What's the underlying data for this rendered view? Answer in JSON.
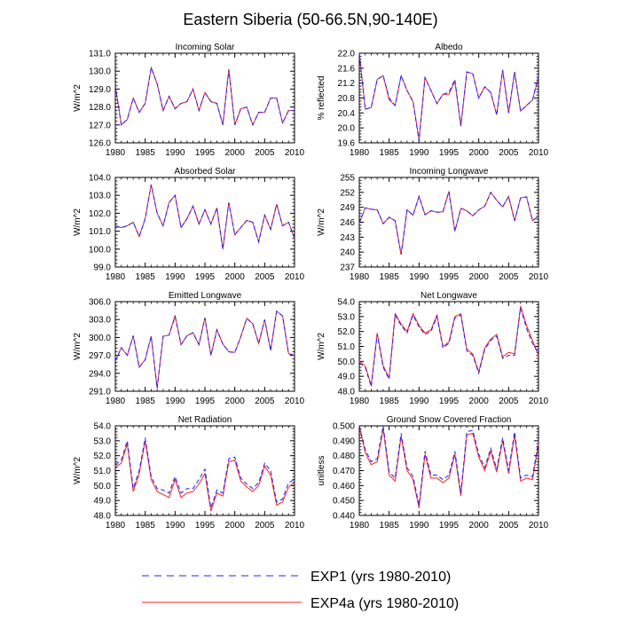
{
  "suptitle": "Eastern Siberia (50-66.5N,90-140E)",
  "legend": [
    {
      "name": "EXP1 (yrs 1980-2010)",
      "color": "#2020ff",
      "dashed": true
    },
    {
      "name": "EXP4a (yrs 1980-2010)",
      "color": "#ff2020",
      "dashed": false
    }
  ],
  "chart_data": [
    {
      "type": "line",
      "title": "Incoming Solar",
      "ylabel": "W/m^2",
      "ylim": [
        126,
        131
      ],
      "yticks": [
        "126.0",
        "127.0",
        "128.0",
        "129.0",
        "130.0",
        "131.0"
      ],
      "xlim": [
        1980,
        2010
      ],
      "xticks": [
        "1980",
        "1985",
        "1990",
        "1995",
        "2000",
        "2005",
        "2010"
      ],
      "x": [
        1980,
        1981,
        1982,
        1983,
        1984,
        1985,
        1986,
        1987,
        1988,
        1989,
        1990,
        1991,
        1992,
        1993,
        1994,
        1995,
        1996,
        1997,
        1998,
        1999,
        2000,
        2001,
        2002,
        2003,
        2004,
        2005,
        2006,
        2007,
        2008,
        2009,
        2010
      ],
      "series": [
        {
          "name": "EXP1",
          "values": [
            129.2,
            127.0,
            127.3,
            128.5,
            127.7,
            128.2,
            130.2,
            129.3,
            127.8,
            128.6,
            127.9,
            128.2,
            128.3,
            129.0,
            127.8,
            128.8,
            128.3,
            128.2,
            127.0,
            130.1,
            127.0,
            127.9,
            128.0,
            127.0,
            127.7,
            127.7,
            128.5,
            128.5,
            127.1,
            127.8,
            127.8
          ]
        },
        {
          "name": "EXP4a",
          "values": [
            129.2,
            127.0,
            127.3,
            128.5,
            127.7,
            128.2,
            130.2,
            129.3,
            127.8,
            128.6,
            127.9,
            128.2,
            128.3,
            129.0,
            127.8,
            128.8,
            128.3,
            128.2,
            127.0,
            130.1,
            127.0,
            127.9,
            128.0,
            127.0,
            127.7,
            127.7,
            128.5,
            128.5,
            127.1,
            127.8,
            127.8
          ]
        }
      ]
    },
    {
      "type": "line",
      "title": "Albedo",
      "ylabel": "% reflected",
      "ylim": [
        19.6,
        22.0
      ],
      "yticks": [
        "19.6",
        "20.0",
        "20.4",
        "20.8",
        "21.2",
        "21.6",
        "22.0"
      ],
      "xlim": [
        1980,
        2010
      ],
      "xticks": [
        "1980",
        "1985",
        "1990",
        "1995",
        "2000",
        "2005",
        "2010"
      ],
      "x": [
        1980,
        1981,
        1982,
        1983,
        1984,
        1985,
        1986,
        1987,
        1988,
        1989,
        1990,
        1991,
        1992,
        1993,
        1994,
        1995,
        1996,
        1997,
        1998,
        1999,
        2000,
        2001,
        2002,
        2003,
        2004,
        2005,
        2006,
        2007,
        2008,
        2009,
        2010
      ],
      "series": [
        {
          "name": "EXP1",
          "values": [
            22.0,
            20.5,
            20.55,
            21.3,
            21.4,
            20.8,
            20.6,
            21.4,
            21.0,
            20.7,
            19.65,
            21.35,
            21.0,
            20.65,
            20.9,
            20.95,
            21.3,
            20.05,
            21.5,
            21.45,
            20.8,
            21.1,
            20.95,
            20.35,
            21.55,
            20.4,
            21.5,
            20.45,
            20.6,
            20.75,
            21.4
          ]
        },
        {
          "name": "EXP4a",
          "values": [
            22.0,
            20.5,
            20.55,
            21.3,
            21.4,
            20.75,
            20.6,
            21.4,
            21.0,
            20.7,
            19.7,
            21.35,
            21.0,
            20.65,
            20.9,
            20.9,
            21.25,
            20.05,
            21.5,
            21.45,
            20.8,
            21.1,
            20.95,
            20.35,
            21.55,
            20.4,
            21.5,
            20.45,
            20.6,
            20.75,
            21.35
          ]
        }
      ]
    },
    {
      "type": "line",
      "title": "Absorbed Solar",
      "ylabel": "W/m^2",
      "ylim": [
        99,
        104
      ],
      "yticks": [
        "99.0",
        "100.0",
        "101.0",
        "102.0",
        "103.0",
        "104.0"
      ],
      "xlim": [
        1980,
        2010
      ],
      "xticks": [
        "1980",
        "1985",
        "1990",
        "1995",
        "2000",
        "2005",
        "2010"
      ],
      "x": [
        1980,
        1981,
        1982,
        1983,
        1984,
        1985,
        1986,
        1987,
        1988,
        1989,
        1990,
        1991,
        1992,
        1993,
        1994,
        1995,
        1996,
        1997,
        1998,
        1999,
        2000,
        2001,
        2002,
        2003,
        2004,
        2005,
        2006,
        2007,
        2008,
        2009,
        2010
      ],
      "series": [
        {
          "name": "EXP1",
          "values": [
            101.3,
            101.2,
            101.3,
            101.5,
            100.7,
            101.7,
            103.6,
            102.0,
            101.3,
            102.6,
            103.0,
            101.2,
            101.7,
            102.4,
            101.4,
            102.2,
            101.4,
            102.3,
            100.0,
            102.6,
            100.8,
            101.2,
            101.6,
            101.5,
            100.4,
            101.9,
            101.1,
            102.5,
            101.3,
            101.5,
            100.6
          ]
        },
        {
          "name": "EXP4a",
          "values": [
            101.3,
            101.2,
            101.3,
            101.5,
            100.7,
            101.7,
            103.6,
            102.0,
            101.3,
            102.6,
            103.0,
            101.2,
            101.7,
            102.4,
            101.4,
            102.2,
            101.4,
            102.3,
            100.0,
            102.6,
            100.8,
            101.2,
            101.6,
            101.5,
            100.4,
            101.9,
            101.1,
            102.5,
            101.3,
            101.5,
            100.6
          ]
        }
      ]
    },
    {
      "type": "line",
      "title": "Incoming Longwave",
      "ylabel": "W/m^2",
      "ylim": [
        237,
        255
      ],
      "yticks": [
        "237",
        "240",
        "243",
        "246",
        "249",
        "252",
        "255"
      ],
      "xlim": [
        1980,
        2010
      ],
      "xticks": [
        "1980",
        "1985",
        "1990",
        "1995",
        "2000",
        "2005",
        "2010"
      ],
      "x": [
        1980,
        1981,
        1982,
        1983,
        1984,
        1985,
        1986,
        1987,
        1988,
        1989,
        1990,
        1991,
        1992,
        1993,
        1994,
        1995,
        1996,
        1997,
        1998,
        1999,
        2000,
        2001,
        2002,
        2003,
        2004,
        2005,
        2006,
        2007,
        2008,
        2009,
        2010
      ],
      "series": [
        {
          "name": "EXP1",
          "values": [
            245.8,
            248.9,
            248.6,
            248.5,
            245.7,
            247.0,
            246.3,
            239.5,
            248.5,
            247.4,
            251.2,
            247.5,
            248.3,
            248.0,
            248.1,
            252.2,
            244.2,
            248.8,
            248.3,
            247.3,
            248.5,
            249.2,
            252.0,
            250.4,
            249.1,
            251.2,
            246.3,
            250.9,
            251.1,
            246.3,
            247.2
          ]
        },
        {
          "name": "EXP4a",
          "values": [
            245.8,
            248.9,
            248.6,
            248.5,
            245.7,
            247.0,
            246.3,
            239.5,
            248.5,
            247.4,
            251.2,
            247.5,
            248.3,
            248.0,
            248.1,
            252.2,
            244.2,
            248.8,
            248.3,
            247.3,
            248.5,
            249.2,
            252.0,
            250.4,
            249.1,
            251.2,
            246.3,
            250.9,
            251.1,
            246.3,
            247.2
          ]
        }
      ]
    },
    {
      "type": "line",
      "title": "Emitted Longwave",
      "ylabel": "W/m^2",
      "ylim": [
        291,
        306
      ],
      "yticks": [
        "291.0",
        "294.0",
        "297.0",
        "300.0",
        "303.0",
        "306.0"
      ],
      "xlim": [
        1980,
        2010
      ],
      "xticks": [
        "1980",
        "1985",
        "1990",
        "1995",
        "2000",
        "2005",
        "2010"
      ],
      "x": [
        1980,
        1981,
        1982,
        1983,
        1984,
        1985,
        1986,
        1987,
        1988,
        1989,
        1990,
        1991,
        1992,
        1993,
        1994,
        1995,
        1996,
        1997,
        1998,
        1999,
        2000,
        2001,
        2002,
        2003,
        2004,
        2005,
        2006,
        2007,
        2008,
        2009,
        2010
      ],
      "series": [
        {
          "name": "EXP1",
          "values": [
            296.0,
            298.3,
            297.0,
            300.3,
            295.0,
            296.3,
            300.2,
            291.5,
            300.2,
            300.4,
            303.5,
            298.8,
            300.3,
            300.8,
            298.8,
            303.3,
            297.0,
            301.3,
            298.9,
            297.6,
            297.5,
            300.1,
            303.2,
            302.3,
            299.0,
            303.0,
            297.8,
            304.4,
            303.6,
            297.3,
            297.0
          ]
        },
        {
          "name": "EXP4a",
          "values": [
            296.0,
            298.3,
            297.0,
            300.3,
            295.0,
            296.3,
            300.2,
            291.5,
            300.2,
            300.4,
            303.7,
            298.8,
            300.3,
            300.8,
            298.8,
            303.3,
            297.0,
            301.3,
            298.9,
            297.6,
            297.5,
            300.1,
            303.2,
            302.3,
            299.0,
            303.0,
            297.8,
            304.4,
            303.6,
            297.3,
            297.0
          ]
        }
      ]
    },
    {
      "type": "line",
      "title": "Net Longwave",
      "ylabel": "W/m^2",
      "ylim": [
        48,
        54
      ],
      "yticks": [
        "48.0",
        "49.0",
        "50.0",
        "51.0",
        "52.0",
        "53.0",
        "54.0"
      ],
      "xlim": [
        1980,
        2010
      ],
      "xticks": [
        "1980",
        "1985",
        "1990",
        "1995",
        "2000",
        "2005",
        "2010"
      ],
      "x": [
        1980,
        1981,
        1982,
        1983,
        1984,
        1985,
        1986,
        1987,
        1988,
        1989,
        1990,
        1991,
        1992,
        1993,
        1994,
        1995,
        1996,
        1997,
        1998,
        1999,
        2000,
        2001,
        2002,
        2003,
        2004,
        2005,
        2006,
        2007,
        2008,
        2009,
        2010
      ],
      "series": [
        {
          "name": "EXP1",
          "values": [
            49.9,
            49.6,
            48.3,
            51.8,
            49.6,
            48.8,
            53.1,
            52.4,
            51.9,
            53.1,
            52.3,
            51.8,
            52.0,
            53.0,
            50.9,
            51.2,
            52.9,
            53.1,
            50.7,
            50.4,
            49.2,
            50.8,
            51.4,
            51.7,
            50.2,
            50.4,
            50.4,
            53.6,
            52.2,
            51.2,
            50.5
          ]
        },
        {
          "name": "EXP4a",
          "values": [
            50.0,
            49.7,
            48.4,
            51.9,
            49.7,
            48.9,
            53.2,
            52.5,
            52.0,
            53.2,
            52.4,
            51.9,
            52.1,
            53.1,
            51.0,
            51.3,
            53.0,
            53.2,
            50.8,
            50.5,
            49.3,
            50.9,
            51.5,
            51.8,
            50.3,
            50.6,
            50.5,
            53.7,
            52.4,
            51.4,
            50.4
          ]
        }
      ]
    },
    {
      "type": "line",
      "title": "Net Radiation",
      "ylabel": "W/m^2",
      "ylim": [
        48,
        54
      ],
      "yticks": [
        "48.0",
        "49.0",
        "50.0",
        "51.0",
        "52.0",
        "53.0",
        "54.0"
      ],
      "xlim": [
        1980,
        2010
      ],
      "xticks": [
        "1980",
        "1985",
        "1990",
        "1995",
        "2000",
        "2005",
        "2010"
      ],
      "x": [
        1980,
        1981,
        1982,
        1983,
        1984,
        1985,
        1986,
        1987,
        1988,
        1989,
        1990,
        1991,
        1992,
        1993,
        1994,
        1995,
        1996,
        1997,
        1998,
        1999,
        2000,
        2001,
        2002,
        2003,
        2004,
        2005,
        2006,
        2007,
        2008,
        2009,
        2010
      ],
      "series": [
        {
          "name": "EXP1",
          "values": [
            51.4,
            51.7,
            53.0,
            49.8,
            51.0,
            53.2,
            50.6,
            49.8,
            49.7,
            49.5,
            50.6,
            49.5,
            49.8,
            49.8,
            50.4,
            51.1,
            48.5,
            49.7,
            49.5,
            51.8,
            51.9,
            50.5,
            50.1,
            49.8,
            50.2,
            51.5,
            51.0,
            48.9,
            49.1,
            50.2,
            50.4
          ]
        },
        {
          "name": "EXP4a",
          "values": [
            51.2,
            51.5,
            52.8,
            49.6,
            50.8,
            53.0,
            50.4,
            49.6,
            49.4,
            49.2,
            50.4,
            49.2,
            49.5,
            49.6,
            50.1,
            50.8,
            48.3,
            49.5,
            49.3,
            51.6,
            51.7,
            50.3,
            49.9,
            49.6,
            50.0,
            51.3,
            50.7,
            48.7,
            48.9,
            49.9,
            50.2
          ]
        }
      ]
    },
    {
      "type": "line",
      "title": "Ground Snow Covered Fraction",
      "ylabel": "unitless",
      "ylim": [
        0.44,
        0.5
      ],
      "yticks": [
        "0.440",
        "0.450",
        "0.460",
        "0.470",
        "0.480",
        "0.490",
        "0.500"
      ],
      "xlim": [
        1980,
        2010
      ],
      "xticks": [
        "1980",
        "1985",
        "1990",
        "1995",
        "2000",
        "2005",
        "2010"
      ],
      "x": [
        1980,
        1981,
        1982,
        1983,
        1984,
        1985,
        1986,
        1987,
        1988,
        1989,
        1990,
        1991,
        1992,
        1993,
        1994,
        1995,
        1996,
        1997,
        1998,
        1999,
        2000,
        2001,
        2002,
        2003,
        2004,
        2005,
        2006,
        2007,
        2008,
        2009,
        2010
      ],
      "series": [
        {
          "name": "EXP1",
          "values": [
            0.5,
            0.484,
            0.476,
            0.478,
            0.5,
            0.469,
            0.465,
            0.495,
            0.472,
            0.466,
            0.447,
            0.483,
            0.467,
            0.467,
            0.464,
            0.467,
            0.483,
            0.455,
            0.496,
            0.497,
            0.481,
            0.472,
            0.485,
            0.471,
            0.492,
            0.47,
            0.496,
            0.465,
            0.467,
            0.466,
            0.49
          ]
        },
        {
          "name": "EXP4a",
          "values": [
            0.5,
            0.482,
            0.474,
            0.476,
            0.498,
            0.467,
            0.463,
            0.493,
            0.47,
            0.464,
            0.445,
            0.481,
            0.465,
            0.465,
            0.462,
            0.465,
            0.481,
            0.453,
            0.494,
            0.495,
            0.479,
            0.47,
            0.483,
            0.469,
            0.49,
            0.468,
            0.494,
            0.463,
            0.465,
            0.464,
            0.488
          ]
        }
      ]
    }
  ]
}
